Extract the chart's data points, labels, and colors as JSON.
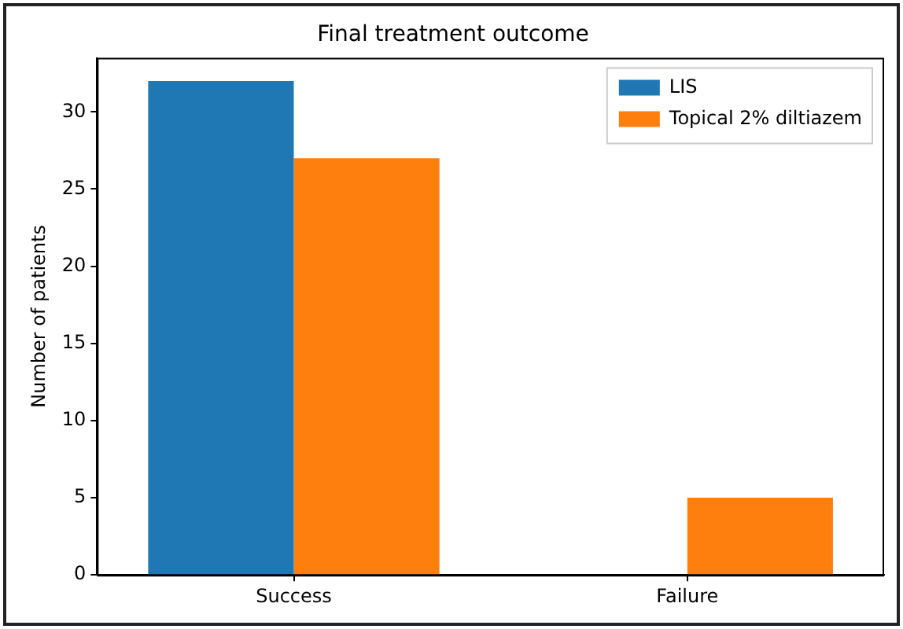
{
  "chart_data": {
    "type": "bar",
    "title": "Final treatment outcome",
    "ylabel": "Number of patients",
    "categories": [
      "Success",
      "Failure"
    ],
    "series": [
      {
        "name": "LIS",
        "color": "#1f77b4",
        "values": [
          32,
          0
        ]
      },
      {
        "name": "Topical 2% diltiazem",
        "color": "#ff7f0e",
        "values": [
          27,
          5
        ]
      }
    ],
    "ylim": [
      0,
      33.5
    ],
    "yticks": [
      0,
      5,
      10,
      15,
      20,
      25,
      30
    ],
    "grid": false,
    "legend": "top right"
  }
}
